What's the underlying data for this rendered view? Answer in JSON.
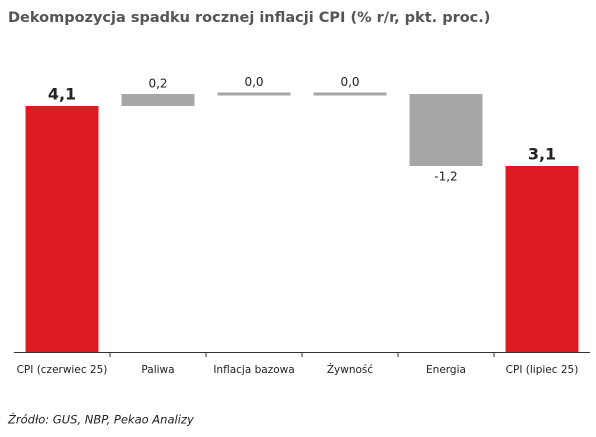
{
  "chart_data": {
    "type": "waterfall",
    "title": "Dekompozycja spadku rocznej inflacji CPI (% r/r, pkt. proc.)",
    "categories": [
      "CPI (czerwiec 25)",
      "Paliwa",
      "Inflacja bazowa",
      "Żywność",
      "Energia",
      "CPI (lipiec 25)"
    ],
    "values": [
      4.1,
      0.2,
      0.0,
      0.0,
      -1.2,
      3.1
    ],
    "value_labels": [
      "4,1",
      "0,2",
      "0,0",
      "0,0",
      "-1,2",
      "3,1"
    ],
    "totals": [
      true,
      false,
      false,
      false,
      false,
      true
    ],
    "total_color": "#dc1a22",
    "change_color": "#a6a6a6",
    "source": "Źródło: GUS, NBP, Pekao Analizy"
  }
}
